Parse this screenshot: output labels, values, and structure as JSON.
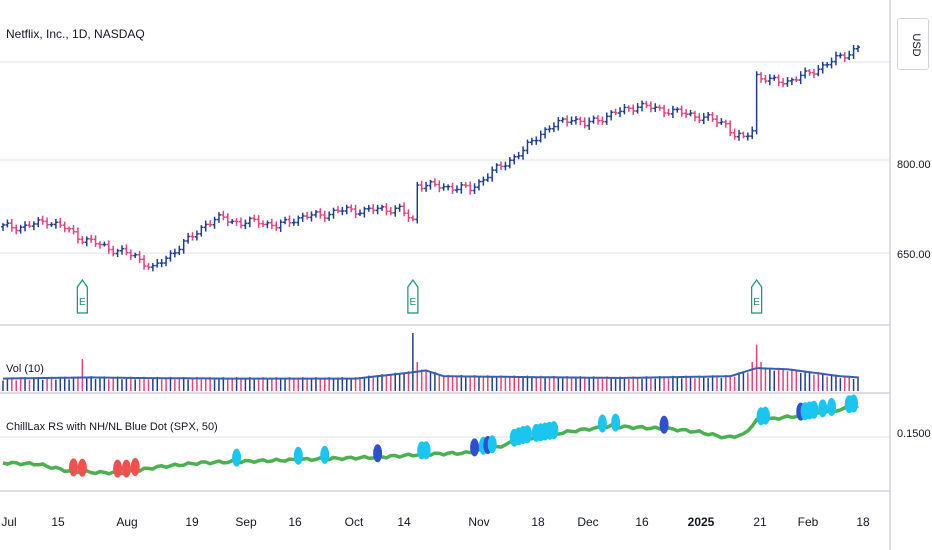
{
  "header": {
    "symbol_title": "Netflix, Inc., 1D, NASDAQ",
    "currency": "USD"
  },
  "price_axis": {
    "ticks": [
      "800.00",
      "650.00"
    ]
  },
  "volume_pane": {
    "title": "Vol (10)"
  },
  "rs_pane": {
    "title": "ChillLax RS with NH/NL Blue Dot (SPX, 50)",
    "ticks": [
      "0.1500"
    ]
  },
  "time_axis": {
    "ticks": [
      "Jul",
      "15",
      "Aug",
      "19",
      "Sep",
      "16",
      "Oct",
      "14",
      "Nov",
      "18",
      "Dec",
      "16",
      "2025",
      "21",
      "Feb",
      "18"
    ]
  },
  "earnings_markers": [
    {
      "label": "E"
    },
    {
      "label": "E"
    },
    {
      "label": "E"
    }
  ],
  "colors": {
    "up": "#1e3f8f",
    "down": "#e0447a",
    "volume_ma": "#3a5fb0",
    "rs_line": "#4caf50",
    "rs_dot_light": "#1ac6f0",
    "rs_dot_dark": "#2d4fd0",
    "rs_dot_red": "#f05050",
    "earnings": "#1e8c7a"
  },
  "chart_data": {
    "type": "ohlc",
    "title": "Netflix, Inc., 1D, NASDAQ",
    "price_anchors": [
      [
        0,
        690
      ],
      [
        5,
        690
      ],
      [
        10,
        700
      ],
      [
        14,
        688
      ],
      [
        18,
        670
      ],
      [
        22,
        660
      ],
      [
        26,
        650
      ],
      [
        30,
        642
      ],
      [
        34,
        620
      ],
      [
        38,
        645
      ],
      [
        42,
        668
      ],
      [
        46,
        695
      ],
      [
        50,
        705
      ],
      [
        54,
        695
      ],
      [
        58,
        700
      ],
      [
        62,
        690
      ],
      [
        66,
        703
      ],
      [
        70,
        708
      ],
      [
        74,
        712
      ],
      [
        78,
        718
      ],
      [
        82,
        716
      ],
      [
        86,
        720
      ],
      [
        90,
        718
      ],
      [
        93,
        700
      ],
      [
        94,
        760
      ],
      [
        98,
        757
      ],
      [
        102,
        755
      ],
      [
        106,
        752
      ],
      [
        110,
        775
      ],
      [
        114,
        795
      ],
      [
        118,
        815
      ],
      [
        122,
        845
      ],
      [
        126,
        860
      ],
      [
        129,
        870
      ],
      [
        132,
        858
      ],
      [
        136,
        870
      ],
      [
        140,
        880
      ],
      [
        144,
        890
      ],
      [
        148,
        885
      ],
      [
        152,
        880
      ],
      [
        156,
        875
      ],
      [
        160,
        868
      ],
      [
        164,
        860
      ],
      [
        166,
        840
      ],
      [
        168,
        835
      ],
      [
        170,
        850
      ],
      [
        171,
        940
      ],
      [
        174,
        930
      ],
      [
        178,
        930
      ],
      [
        182,
        940
      ],
      [
        186,
        955
      ],
      [
        190,
        970
      ],
      [
        194,
        985
      ]
    ],
    "volume_anchors": [
      [
        0,
        0.18
      ],
      [
        20,
        0.2
      ],
      [
        30,
        0.19
      ],
      [
        50,
        0.18
      ],
      [
        80,
        0.18
      ],
      [
        92,
        0.28
      ],
      [
        96,
        0.32
      ],
      [
        100,
        0.22
      ],
      [
        140,
        0.19
      ],
      [
        165,
        0.22
      ],
      [
        171,
        0.36
      ],
      [
        178,
        0.34
      ],
      [
        190,
        0.22
      ],
      [
        194,
        0.2
      ]
    ],
    "volume_spikes": [
      [
        18,
        0.55
      ],
      [
        93,
        1.0
      ],
      [
        94,
        0.5
      ],
      [
        170,
        0.5
      ],
      [
        171,
        0.8
      ],
      [
        172,
        0.5
      ]
    ],
    "rs_anchors": [
      [
        0,
        0.128
      ],
      [
        8,
        0.127
      ],
      [
        15,
        0.122
      ],
      [
        22,
        0.121
      ],
      [
        28,
        0.121
      ],
      [
        35,
        0.125
      ],
      [
        45,
        0.128
      ],
      [
        55,
        0.129
      ],
      [
        65,
        0.13
      ],
      [
        75,
        0.131
      ],
      [
        85,
        0.132
      ],
      [
        95,
        0.134
      ],
      [
        105,
        0.135
      ],
      [
        112,
        0.139
      ],
      [
        118,
        0.145
      ],
      [
        124,
        0.148
      ],
      [
        130,
        0.151
      ],
      [
        138,
        0.154
      ],
      [
        146,
        0.153
      ],
      [
        152,
        0.152
      ],
      [
        158,
        0.15
      ],
      [
        164,
        0.146
      ],
      [
        168,
        0.148
      ],
      [
        171,
        0.158
      ],
      [
        176,
        0.16
      ],
      [
        182,
        0.162
      ],
      [
        188,
        0.165
      ],
      [
        194,
        0.168
      ]
    ],
    "rs_dots": [
      {
        "x": 16,
        "c": "red"
      },
      {
        "x": 18,
        "c": "red"
      },
      {
        "x": 26,
        "c": "red"
      },
      {
        "x": 28,
        "c": "red"
      },
      {
        "x": 30,
        "c": "red"
      },
      {
        "x": 53,
        "c": "light"
      },
      {
        "x": 67,
        "c": "light"
      },
      {
        "x": 73,
        "c": "light"
      },
      {
        "x": 85,
        "c": "dark"
      },
      {
        "x": 95,
        "c": "light"
      },
      {
        "x": 96,
        "c": "light"
      },
      {
        "x": 107,
        "c": "dark"
      },
      {
        "x": 109,
        "c": "light"
      },
      {
        "x": 110,
        "c": "dark"
      },
      {
        "x": 111,
        "c": "light"
      },
      {
        "x": 116,
        "c": "light"
      },
      {
        "x": 117,
        "c": "light"
      },
      {
        "x": 118,
        "c": "light"
      },
      {
        "x": 119,
        "c": "light"
      },
      {
        "x": 121,
        "c": "light"
      },
      {
        "x": 122,
        "c": "light"
      },
      {
        "x": 123,
        "c": "light"
      },
      {
        "x": 124,
        "c": "light"
      },
      {
        "x": 125,
        "c": "light"
      },
      {
        "x": 136,
        "c": "light"
      },
      {
        "x": 139,
        "c": "light"
      },
      {
        "x": 150,
        "c": "dark"
      },
      {
        "x": 172,
        "c": "light"
      },
      {
        "x": 173,
        "c": "light"
      },
      {
        "x": 181,
        "c": "dark"
      },
      {
        "x": 182,
        "c": "light"
      },
      {
        "x": 183,
        "c": "light"
      },
      {
        "x": 184,
        "c": "light"
      },
      {
        "x": 186,
        "c": "light"
      },
      {
        "x": 188,
        "c": "light"
      },
      {
        "x": 192,
        "c": "light"
      },
      {
        "x": 193,
        "c": "light"
      }
    ],
    "earnings_at": [
      18,
      93,
      171
    ],
    "bars": 195,
    "ylabel": "",
    "xlabel": ""
  }
}
